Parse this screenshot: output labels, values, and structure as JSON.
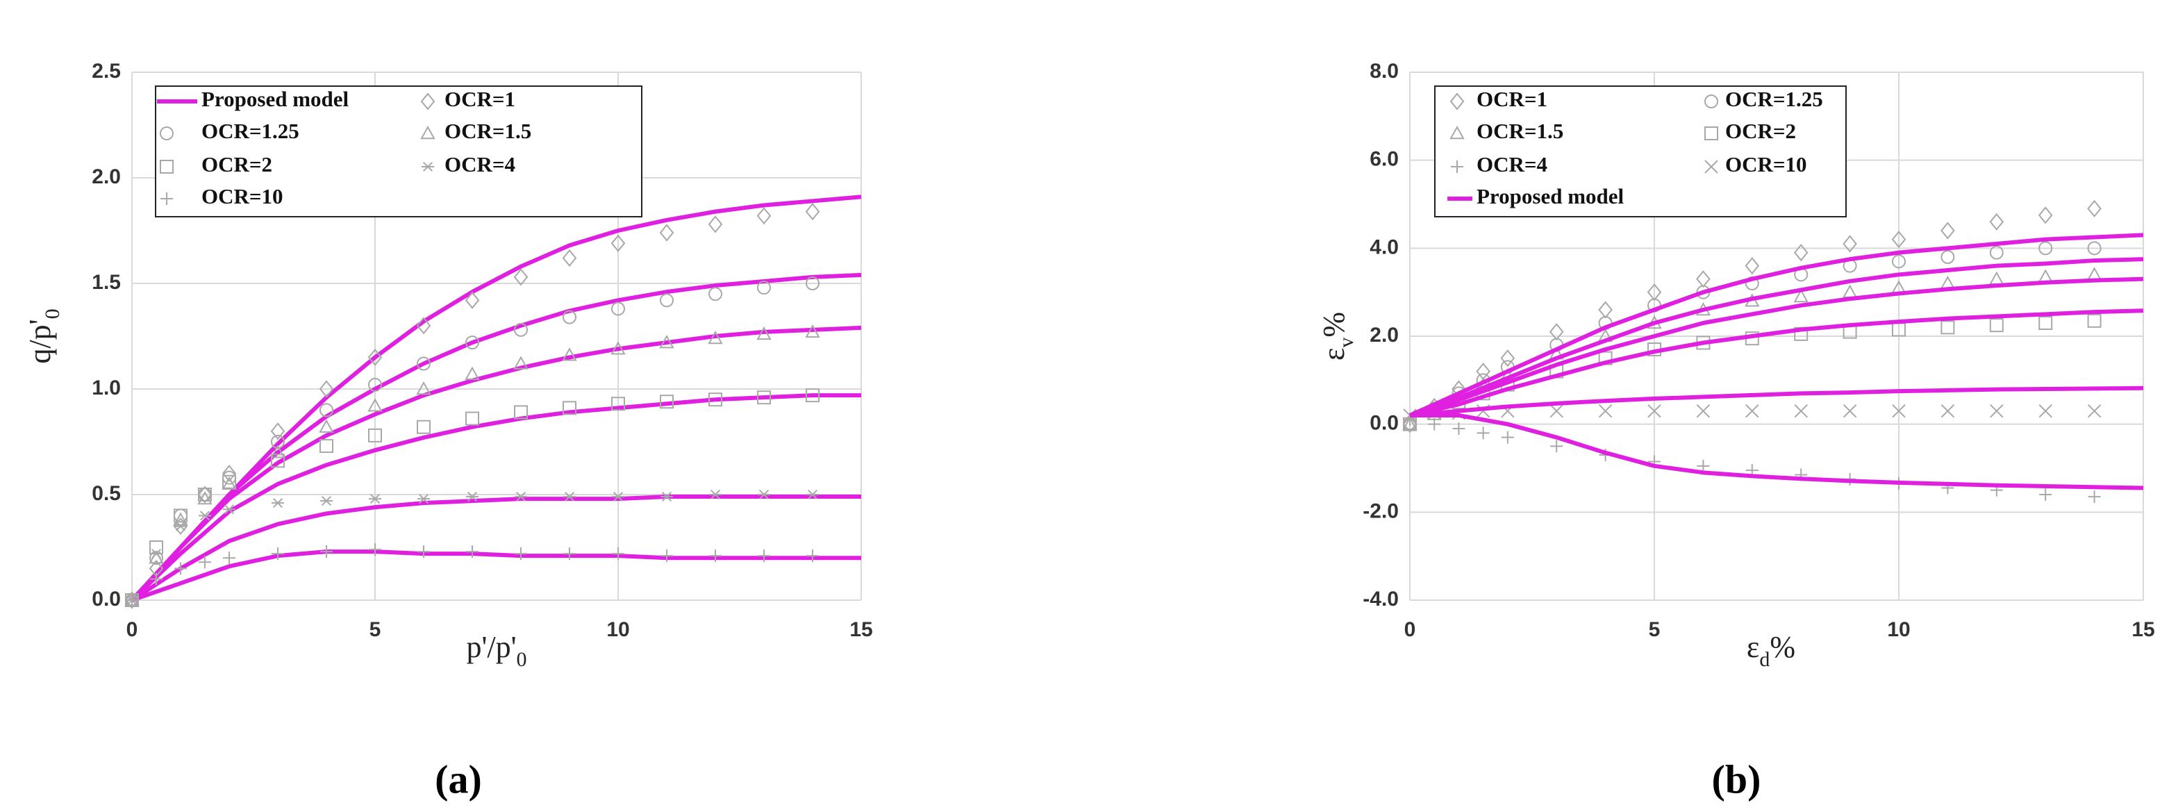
{
  "chart_data": [
    {
      "type": "scatter",
      "caption": "(a)",
      "x_label": [
        "p'/p'",
        "0"
      ],
      "y_label": [
        "q/p'",
        "0"
      ],
      "xlim": [
        0,
        15
      ],
      "ylim": [
        0,
        2.5
      ],
      "xticks": [
        0,
        5,
        10,
        15
      ],
      "yticks": [
        {
          "value": 0,
          "label": "0.0"
        },
        {
          "value": 0.5,
          "label": "0.5"
        },
        {
          "value": 1,
          "label": "1.0"
        },
        {
          "value": 1.5,
          "label": "1.5"
        },
        {
          "value": 2,
          "label": "2.0"
        },
        {
          "value": 2.5,
          "label": "2.5"
        }
      ],
      "grid": true,
      "marker_color": "#a8a8a8",
      "series": [
        {
          "name": "Proposed model",
          "color": "#e020e0",
          "x": [
            0,
            1,
            2,
            3,
            4,
            5,
            6,
            7,
            8,
            9,
            10,
            11,
            12,
            13,
            14,
            15
          ],
          "curves": [
            [
              0,
              0.25,
              0.5,
              0.74,
              0.96,
              1.15,
              1.32,
              1.46,
              1.58,
              1.68,
              1.75,
              1.8,
              1.84,
              1.87,
              1.89,
              1.91
            ],
            [
              0,
              0.25,
              0.5,
              0.7,
              0.87,
              1.0,
              1.12,
              1.22,
              1.3,
              1.37,
              1.42,
              1.46,
              1.49,
              1.51,
              1.53,
              1.54
            ],
            [
              0,
              0.25,
              0.48,
              0.65,
              0.78,
              0.88,
              0.97,
              1.04,
              1.1,
              1.15,
              1.19,
              1.22,
              1.25,
              1.27,
              1.28,
              1.29
            ],
            [
              0,
              0.22,
              0.42,
              0.55,
              0.64,
              0.71,
              0.77,
              0.82,
              0.86,
              0.89,
              0.91,
              0.93,
              0.95,
              0.96,
              0.97,
              0.97
            ],
            [
              0,
              0.15,
              0.28,
              0.36,
              0.41,
              0.44,
              0.46,
              0.47,
              0.48,
              0.48,
              0.48,
              0.49,
              0.49,
              0.49,
              0.49,
              0.49
            ],
            [
              0,
              0.08,
              0.16,
              0.21,
              0.23,
              0.23,
              0.22,
              0.22,
              0.21,
              0.21,
              0.21,
              0.2,
              0.2,
              0.2,
              0.2,
              0.2
            ]
          ]
        },
        {
          "name": "OCR=1",
          "marker": "diamond",
          "x": [
            0,
            0.5,
            1,
            1.5,
            2,
            3,
            4,
            5,
            6,
            7,
            8,
            9,
            10,
            11,
            12,
            13,
            14
          ],
          "values": [
            0,
            0.15,
            0.35,
            0.5,
            0.6,
            0.8,
            1.0,
            1.15,
            1.3,
            1.42,
            1.53,
            1.62,
            1.69,
            1.74,
            1.78,
            1.82,
            1.84
          ]
        },
        {
          "name": "OCR=1.25",
          "marker": "circle",
          "x": [
            0,
            0.5,
            1,
            1.5,
            2,
            3,
            4,
            5,
            6,
            7,
            8,
            9,
            10,
            11,
            12,
            13,
            14
          ],
          "values": [
            0,
            0.2,
            0.4,
            0.5,
            0.58,
            0.75,
            0.9,
            1.02,
            1.12,
            1.22,
            1.28,
            1.34,
            1.38,
            1.42,
            1.45,
            1.48,
            1.5
          ]
        },
        {
          "name": "OCR=1.5",
          "marker": "triangle",
          "x": [
            0,
            0.5,
            1,
            1.5,
            2,
            3,
            4,
            5,
            6,
            7,
            8,
            9,
            10,
            11,
            12,
            13,
            14
          ],
          "values": [
            0,
            0.2,
            0.38,
            0.48,
            0.55,
            0.7,
            0.82,
            0.92,
            1.0,
            1.07,
            1.12,
            1.16,
            1.19,
            1.22,
            1.24,
            1.26,
            1.27
          ]
        },
        {
          "name": "OCR=2",
          "marker": "square",
          "x": [
            0,
            0.5,
            1,
            1.5,
            2,
            3,
            4,
            5,
            6,
            7,
            8,
            9,
            10,
            11,
            12,
            13,
            14
          ],
          "values": [
            0,
            0.25,
            0.4,
            0.5,
            0.56,
            0.66,
            0.73,
            0.78,
            0.82,
            0.86,
            0.89,
            0.91,
            0.93,
            0.94,
            0.95,
            0.96,
            0.97
          ]
        },
        {
          "name": "OCR=4",
          "marker": "asterisk",
          "x": [
            0,
            0.5,
            1,
            1.5,
            2,
            3,
            4,
            5,
            6,
            7,
            8,
            9,
            10,
            11,
            12,
            13,
            14
          ],
          "values": [
            0,
            0.22,
            0.35,
            0.4,
            0.43,
            0.46,
            0.47,
            0.48,
            0.48,
            0.49,
            0.49,
            0.49,
            0.49,
            0.49,
            0.5,
            0.5,
            0.5
          ]
        },
        {
          "name": "OCR=10",
          "marker": "plus",
          "x": [
            0,
            0.5,
            1,
            1.5,
            2,
            3,
            4,
            5,
            6,
            7,
            8,
            9,
            10,
            11,
            12,
            13,
            14
          ],
          "values": [
            0,
            0.1,
            0.15,
            0.18,
            0.2,
            0.22,
            0.23,
            0.24,
            0.23,
            0.23,
            0.22,
            0.22,
            0.22,
            0.21,
            0.21,
            0.21,
            0.21
          ]
        }
      ]
    },
    {
      "type": "scatter",
      "caption": "(b)",
      "x_label": [
        "ε",
        "d",
        "%"
      ],
      "y_label": [
        "ε",
        "v",
        "%"
      ],
      "xlim": [
        0,
        15
      ],
      "ylim": [
        -4,
        8
      ],
      "xticks": [
        0,
        5,
        10,
        15
      ],
      "yticks": [
        {
          "value": -4,
          "label": "-4.0"
        },
        {
          "value": -2,
          "label": "-2.0"
        },
        {
          "value": 0,
          "label": "0.0"
        },
        {
          "value": 2,
          "label": "2.0"
        },
        {
          "value": 4,
          "label": "4.0"
        },
        {
          "value": 6,
          "label": "6.0"
        },
        {
          "value": 8,
          "label": "8.0"
        }
      ],
      "grid": true,
      "marker_color": "#a8a8a8",
      "series": [
        {
          "name": "OCR=1",
          "marker": "diamond",
          "x": [
            0,
            0.5,
            1,
            1.5,
            2,
            3,
            4,
            5,
            6,
            7,
            8,
            9,
            10,
            11,
            12,
            13,
            14
          ],
          "values": [
            0,
            0.4,
            0.8,
            1.2,
            1.5,
            2.1,
            2.6,
            3.0,
            3.3,
            3.6,
            3.9,
            4.1,
            4.2,
            4.4,
            4.6,
            4.75,
            4.9
          ]
        },
        {
          "name": "OCR=1.25",
          "marker": "circle",
          "x": [
            0,
            0.5,
            1,
            1.5,
            2,
            3,
            4,
            5,
            6,
            7,
            8,
            9,
            10,
            11,
            12,
            13,
            14
          ],
          "values": [
            0,
            0.35,
            0.7,
            1.0,
            1.3,
            1.8,
            2.3,
            2.7,
            3.0,
            3.2,
            3.4,
            3.6,
            3.7,
            3.8,
            3.9,
            4.0,
            4.0
          ]
        },
        {
          "name": "OCR=1.5",
          "marker": "triangle",
          "x": [
            0,
            0.5,
            1,
            1.5,
            2,
            3,
            4,
            5,
            6,
            7,
            8,
            9,
            10,
            11,
            12,
            13,
            14
          ],
          "values": [
            0,
            0.3,
            0.6,
            0.9,
            1.1,
            1.6,
            2.0,
            2.3,
            2.6,
            2.8,
            2.9,
            3.0,
            3.1,
            3.2,
            3.3,
            3.35,
            3.4
          ]
        },
        {
          "name": "OCR=2",
          "marker": "square",
          "x": [
            0,
            0.5,
            1,
            1.5,
            2,
            3,
            4,
            5,
            6,
            7,
            8,
            9,
            10,
            11,
            12,
            13,
            14
          ],
          "values": [
            0,
            0.25,
            0.5,
            0.7,
            0.9,
            1.2,
            1.5,
            1.7,
            1.85,
            1.95,
            2.05,
            2.1,
            2.15,
            2.2,
            2.25,
            2.3,
            2.35
          ]
        },
        {
          "name": "OCR=4",
          "marker": "plus",
          "x": [
            0,
            0.5,
            1,
            1.5,
            2,
            3,
            4,
            5,
            6,
            7,
            8,
            9,
            10,
            11,
            12,
            13,
            14
          ],
          "values": [
            0.1,
            0,
            -0.1,
            -0.2,
            -0.3,
            -0.5,
            -0.7,
            -0.85,
            -0.95,
            -1.05,
            -1.15,
            -1.25,
            -1.35,
            -1.45,
            -1.5,
            -1.6,
            -1.65
          ]
        },
        {
          "name": "OCR=10",
          "marker": "x",
          "x": [
            0,
            0.5,
            1,
            1.5,
            2,
            3,
            4,
            5,
            6,
            7,
            8,
            9,
            10,
            11,
            12,
            13,
            14
          ],
          "values": [
            0.2,
            0.25,
            0.25,
            0.3,
            0.3,
            0.3,
            0.3,
            0.3,
            0.3,
            0.3,
            0.3,
            0.3,
            0.3,
            0.3,
            0.3,
            0.3,
            0.3
          ]
        },
        {
          "name": "Proposed model",
          "color": "#e020e0",
          "x": [
            0,
            1,
            2,
            3,
            4,
            5,
            6,
            7,
            8,
            9,
            10,
            11,
            12,
            13,
            14,
            15
          ],
          "curves": [
            [
              0.2,
              0.7,
              1.2,
              1.7,
              2.2,
              2.6,
              3.0,
              3.3,
              3.55,
              3.75,
              3.9,
              4.0,
              4.1,
              4.2,
              4.25,
              4.3
            ],
            [
              0.2,
              0.6,
              1.05,
              1.5,
              1.9,
              2.3,
              2.6,
              2.85,
              3.05,
              3.25,
              3.4,
              3.5,
              3.6,
              3.65,
              3.72,
              3.75
            ],
            [
              0.2,
              0.55,
              0.95,
              1.35,
              1.7,
              2.0,
              2.3,
              2.5,
              2.7,
              2.85,
              2.97,
              3.07,
              3.15,
              3.22,
              3.27,
              3.3
            ],
            [
              0.2,
              0.45,
              0.8,
              1.1,
              1.4,
              1.65,
              1.85,
              2.0,
              2.15,
              2.25,
              2.33,
              2.4,
              2.45,
              2.5,
              2.55,
              2.58
            ],
            [
              0.2,
              0.3,
              0.4,
              0.47,
              0.53,
              0.58,
              0.62,
              0.66,
              0.7,
              0.72,
              0.75,
              0.77,
              0.79,
              0.8,
              0.81,
              0.82
            ],
            [
              0.2,
              0.2,
              0,
              -0.3,
              -0.65,
              -0.95,
              -1.1,
              -1.18,
              -1.24,
              -1.29,
              -1.33,
              -1.36,
              -1.39,
              -1.41,
              -1.43,
              -1.45
            ]
          ]
        }
      ]
    }
  ]
}
